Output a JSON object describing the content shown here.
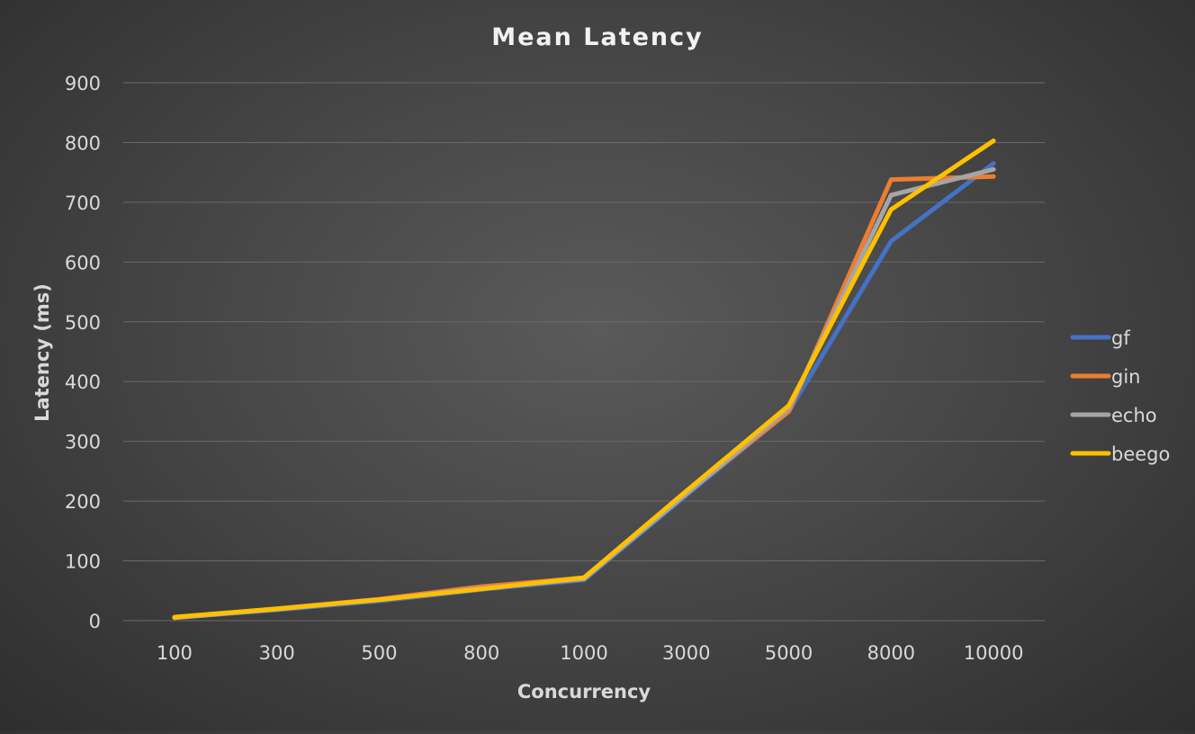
{
  "chart_data": {
    "type": "line",
    "title": "Mean Latency",
    "xlabel": "Concurrency",
    "ylabel": "Latency (ms)",
    "categories": [
      "100",
      "300",
      "500",
      "800",
      "1000",
      "3000",
      "5000",
      "8000",
      "10000"
    ],
    "ylim": [
      0,
      900
    ],
    "yticks": [
      0,
      100,
      200,
      300,
      400,
      500,
      600,
      700,
      800,
      900
    ],
    "grid": true,
    "legend_position": "right",
    "series": [
      {
        "name": "gf",
        "color": "#4472c4",
        "values": [
          5,
          18,
          33,
          52,
          68,
          210,
          350,
          635,
          765
        ]
      },
      {
        "name": "gin",
        "color": "#ed7d31",
        "values": [
          5,
          20,
          36,
          57,
          72,
          213,
          350,
          738,
          743
        ]
      },
      {
        "name": "echo",
        "color": "#a5a5a5",
        "values": [
          5,
          19,
          35,
          54,
          70,
          212,
          355,
          712,
          755
        ]
      },
      {
        "name": "beego",
        "color": "#ffc000",
        "values": [
          6,
          20,
          35,
          53,
          72,
          217,
          360,
          688,
          803
        ]
      }
    ]
  }
}
